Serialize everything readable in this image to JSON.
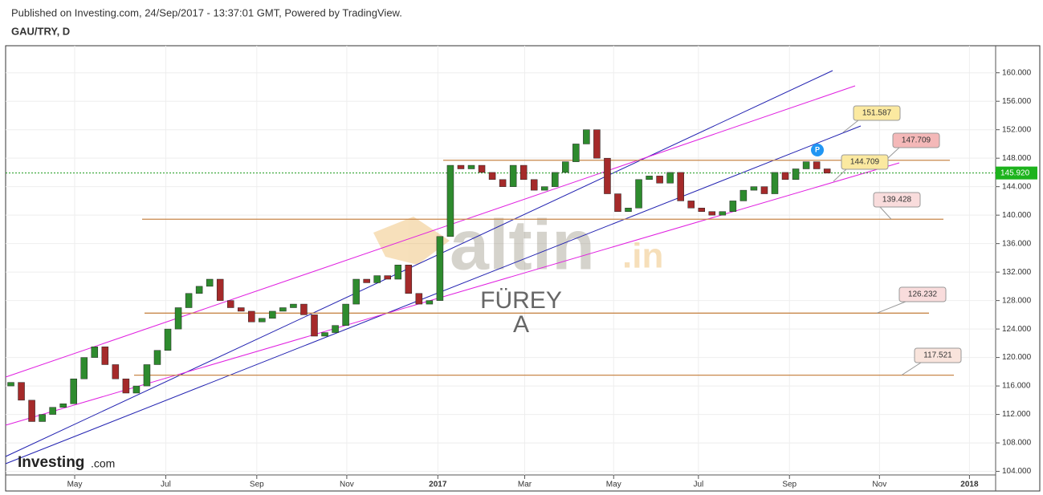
{
  "header": {
    "published": "Published on Investing.com, 24/Sep/2017 - 13:37:01 GMT, Powered by TradingView.",
    "symbol": "GAU/TRY, D"
  },
  "watermark": {
    "brand": "altin",
    "domain": ".in",
    "name": "FÜREY",
    "initial": "A"
  },
  "logo": {
    "brand": "Investing",
    "suffix": ".com"
  },
  "chart_data": {
    "type": "candlestick",
    "x": [
      0,
      1,
      2,
      3,
      4,
      5,
      6,
      7,
      8,
      9,
      10,
      11,
      12,
      13,
      14,
      15,
      16,
      17,
      18,
      19,
      20,
      21,
      22,
      23,
      24,
      25,
      26,
      27,
      28,
      29,
      30,
      31,
      32,
      33,
      34,
      35,
      36,
      37,
      38,
      39,
      40,
      41,
      42,
      43,
      44,
      45,
      46,
      47,
      48,
      49,
      50,
      51,
      52,
      53,
      54,
      55,
      56,
      57,
      58,
      59,
      60,
      61,
      62,
      63,
      64,
      65,
      66,
      67,
      68,
      69,
      70,
      71,
      72,
      73,
      74,
      75,
      76,
      77,
      78
    ],
    "open": [
      116,
      116.5,
      114,
      111,
      112,
      113,
      113.5,
      117,
      120,
      121.5,
      119,
      117,
      115,
      116,
      119,
      121,
      124,
      127,
      129,
      130,
      131,
      128,
      127,
      126.5,
      125,
      125.5,
      126.5,
      127,
      127.5,
      126,
      123,
      123.5,
      124.5,
      127.5,
      131,
      130.5,
      131.5,
      131,
      133,
      129,
      127.5,
      128,
      137,
      147,
      146.5,
      147,
      146,
      145,
      144,
      147,
      145,
      143.5,
      144,
      146,
      147.5,
      150,
      152,
      148,
      143,
      140.5,
      141,
      145,
      145.5,
      144.5,
      146,
      142,
      141,
      140.5,
      140,
      140.5,
      142,
      143.5,
      144,
      143,
      146,
      145,
      146.5,
      147.5,
      146.5
    ],
    "close": [
      116.5,
      114,
      111,
      112,
      113,
      113.5,
      117,
      120,
      121.5,
      119,
      117,
      115,
      116,
      119,
      121,
      124,
      127,
      129,
      130,
      131,
      128,
      127,
      126.5,
      125,
      125.5,
      126.5,
      127,
      127.5,
      126,
      123,
      123.5,
      124.5,
      127.5,
      131,
      130.5,
      131.5,
      131,
      133,
      129,
      127.5,
      128,
      137,
      147,
      146.5,
      147,
      146,
      145,
      144,
      147,
      145,
      143.5,
      144,
      146,
      147.5,
      150,
      152,
      148,
      143,
      140.5,
      141,
      145,
      145.5,
      144.5,
      146,
      142,
      141,
      140.5,
      140,
      140.5,
      142,
      143.5,
      144,
      143,
      146,
      145,
      146.5,
      147.5,
      146.5,
      145.9
    ],
    "up_color": "#2e8b2e",
    "down_color": "#a52a2a",
    "xlim": [
      -0.5,
      94.1
    ],
    "xticks": [
      {
        "value": 6.1,
        "label": "May"
      },
      {
        "value": 14.8,
        "label": "Jul"
      },
      {
        "value": 23.5,
        "label": "Sep"
      },
      {
        "value": 32.1,
        "label": "Nov"
      },
      {
        "value": 40.8,
        "label": "2017"
      },
      {
        "value": 49.1,
        "label": "Mar"
      },
      {
        "value": 57.6,
        "label": "May"
      },
      {
        "value": 65.7,
        "label": "Jul"
      },
      {
        "value": 74.4,
        "label": "Sep"
      },
      {
        "value": 83.0,
        "label": "Nov"
      },
      {
        "value": 91.6,
        "label": "2018"
      }
    ],
    "ylim": [
      103.5,
      163.8
    ],
    "yticks": [
      {
        "value": 104,
        "label": "104.000"
      },
      {
        "value": 108,
        "label": "108.000"
      },
      {
        "value": 112,
        "label": "112.000"
      },
      {
        "value": 116,
        "label": "116.000"
      },
      {
        "value": 120,
        "label": "120.000"
      },
      {
        "value": 124,
        "label": "124.000"
      },
      {
        "value": 128,
        "label": "128.000"
      },
      {
        "value": 132,
        "label": "132.000"
      },
      {
        "value": 136,
        "label": "136.000"
      },
      {
        "value": 140,
        "label": "140.000"
      },
      {
        "value": 144,
        "label": "144.000"
      },
      {
        "value": 148,
        "label": "148.000"
      },
      {
        "value": 152,
        "label": "152.000"
      },
      {
        "value": 156,
        "label": "156.000"
      },
      {
        "value": 160,
        "label": "160.000"
      }
    ],
    "grid": true,
    "levels": [
      147.709,
      139.428,
      126.232,
      117.521
    ],
    "trend_labels": [
      151.587,
      144.709
    ],
    "last_price": {
      "value": 145.92,
      "label": "145.920"
    },
    "marker": "P"
  }
}
